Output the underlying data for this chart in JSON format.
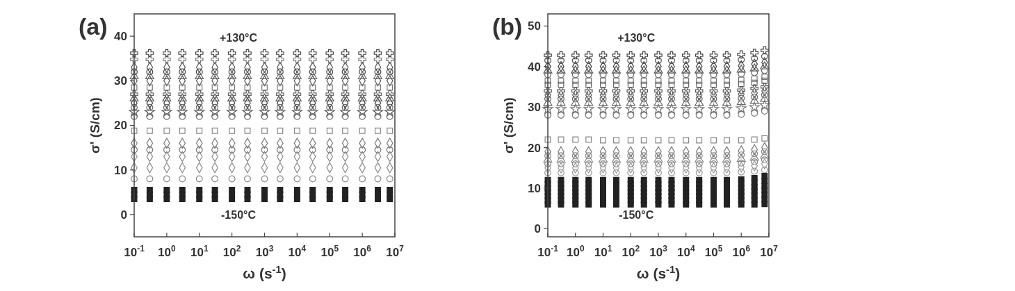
{
  "chart_data": [
    {
      "type": "scatter",
      "title": "(a)",
      "xlabel": "ω (s$^{-1}$)",
      "ylabel": "σ' (S/cm)",
      "log": "x",
      "xlim": [
        0.1,
        10000000
      ],
      "ylim": [
        -5,
        45
      ],
      "yticks": [
        0,
        10,
        20,
        30,
        40
      ],
      "xticks": [
        {
          "value": 0.1,
          "label": "10$^{-1}$"
        },
        {
          "value": 1,
          "label": "10$^{0}$"
        },
        {
          "value": 10,
          "label": "10$^{1}$"
        },
        {
          "value": 100,
          "label": "10$^{2}$"
        },
        {
          "value": 1000,
          "label": "10$^{3}$"
        },
        {
          "value": 10000,
          "label": "10$^{4}$"
        },
        {
          "value": 100000,
          "label": "10$^{5}$"
        },
        {
          "value": 1000000,
          "label": "10$^{6}$"
        },
        {
          "value": 10000000,
          "label": "10$^{7}$"
        }
      ],
      "annotations": [
        "+130°C",
        "-150°C"
      ],
      "grid": false,
      "x": [
        0.1,
        0.3,
        1,
        3,
        10,
        30,
        100,
        300,
        1000,
        3000,
        10000,
        30000,
        100000,
        300000,
        1000000,
        3000000,
        7000000
      ],
      "series": [
        {
          "color": "#444444",
          "marker": "cross",
          "values": [
            36.2,
            36.2,
            36.2,
            36.2,
            36.2,
            36.2,
            36.2,
            36.2,
            36.2,
            36.2,
            36.2,
            36.2,
            36.2,
            36.2,
            36.2,
            36.2,
            36.2
          ]
        },
        {
          "color": "#777777",
          "marker": "cross",
          "values": [
            34.8,
            34.8,
            34.8,
            34.8,
            34.8,
            34.8,
            34.8,
            34.8,
            34.8,
            34.8,
            34.8,
            34.8,
            34.8,
            34.8,
            34.8,
            34.8,
            34.8
          ]
        },
        {
          "color": "#555555",
          "marker": "diamond",
          "values": [
            33,
            33,
            33,
            33,
            33,
            33,
            33,
            33,
            33,
            33,
            33,
            33,
            33,
            33,
            33,
            33,
            33
          ]
        },
        {
          "color": "#444444",
          "marker": "circle",
          "values": [
            32,
            32,
            32,
            32,
            32,
            32,
            32,
            32,
            32,
            32,
            32,
            32,
            32,
            32,
            32,
            32,
            32
          ]
        },
        {
          "color": "#666666",
          "marker": "triangle",
          "values": [
            31,
            31,
            31,
            31,
            31,
            31,
            31,
            31,
            31,
            31,
            31,
            31,
            31,
            31,
            31,
            31,
            31
          ]
        },
        {
          "color": "#555555",
          "marker": "diamond",
          "values": [
            30,
            30,
            30,
            30,
            30,
            30,
            30,
            30,
            30,
            30,
            30,
            30,
            30,
            30,
            30,
            30,
            30
          ]
        },
        {
          "color": "#777777",
          "marker": "square",
          "values": [
            28.5,
            28.5,
            28.5,
            28.5,
            28.5,
            28.5,
            28.5,
            28.5,
            28.5,
            28.5,
            28.5,
            28.5,
            28.5,
            28.5,
            28.5,
            28.5,
            28.5
          ]
        },
        {
          "color": "#666666",
          "marker": "cross",
          "values": [
            27,
            27,
            27,
            27,
            27,
            27,
            27,
            27,
            27,
            27,
            27,
            27,
            27,
            27,
            27,
            27,
            27
          ]
        },
        {
          "color": "#555555",
          "marker": "triangle",
          "values": [
            26,
            26,
            26,
            26,
            26,
            26,
            26,
            26,
            26,
            26,
            26,
            26,
            26,
            26,
            26,
            26,
            26
          ]
        },
        {
          "color": "#444444",
          "marker": "diamond",
          "values": [
            25,
            25,
            25,
            25,
            25,
            25,
            25,
            25,
            25,
            25,
            25,
            25,
            25,
            25,
            25,
            25,
            25
          ]
        },
        {
          "color": "#666666",
          "marker": "circle",
          "values": [
            24,
            24,
            24,
            24,
            24,
            24,
            24,
            24,
            24,
            24,
            24,
            24,
            24,
            24,
            24,
            24,
            24
          ]
        },
        {
          "color": "#555555",
          "marker": "star",
          "values": [
            23,
            23,
            23,
            23,
            23,
            23,
            23,
            23,
            23,
            23,
            23,
            23,
            23,
            23,
            23,
            23,
            23
          ]
        },
        {
          "color": "#777777",
          "marker": "circle",
          "values": [
            22,
            22,
            22,
            22,
            22,
            22,
            22,
            22,
            22,
            22,
            22,
            22,
            22,
            22,
            22,
            22,
            22
          ]
        },
        {
          "color": "#888888",
          "marker": "square",
          "values": [
            18.8,
            18.8,
            18.8,
            18.8,
            18.8,
            18.8,
            18.8,
            18.8,
            18.8,
            18.8,
            18.8,
            18.8,
            18.8,
            18.8,
            18.8,
            18.8,
            18.8
          ]
        },
        {
          "color": "#777777",
          "marker": "diamond",
          "values": [
            16,
            16,
            16,
            16,
            16,
            16,
            16,
            16,
            16,
            16,
            16,
            16,
            16,
            16,
            16,
            16,
            16
          ]
        },
        {
          "color": "#777777",
          "marker": "circle",
          "values": [
            14.5,
            14.5,
            14.5,
            14.5,
            14.5,
            14.5,
            14.5,
            14.5,
            14.5,
            14.5,
            14.5,
            14.5,
            14.5,
            14.5,
            14.5,
            14.5,
            14.5
          ]
        },
        {
          "color": "#888888",
          "marker": "diamond",
          "values": [
            13,
            13,
            13,
            13,
            13,
            13,
            13,
            13,
            13,
            13,
            13,
            13,
            13,
            13,
            13,
            13,
            13
          ]
        },
        {
          "color": "#888888",
          "marker": "diamond",
          "values": [
            10.5,
            10.5,
            10.5,
            10.5,
            10.5,
            10.5,
            10.5,
            10.5,
            10.5,
            10.5,
            10.5,
            10.5,
            10.5,
            10.5,
            10.5,
            10.5,
            10.5
          ]
        },
        {
          "color": "#888888",
          "marker": "circle",
          "values": [
            8,
            8,
            8,
            8,
            8,
            8,
            8,
            8,
            8,
            8,
            8,
            8,
            8,
            8,
            8,
            8,
            8
          ]
        },
        {
          "color": "#222222",
          "marker": "square",
          "values": [
            5.5,
            5.5,
            5.5,
            5.5,
            5.5,
            5.5,
            5.5,
            5.5,
            5.5,
            5.5,
            5.5,
            5.5,
            5.5,
            5.5,
            5.5,
            5.5,
            5.5
          ]
        },
        {
          "color": "#222222",
          "marker": "square",
          "values": [
            4.5,
            4.5,
            4.5,
            4.5,
            4.5,
            4.5,
            4.5,
            4.5,
            4.5,
            4.5,
            4.5,
            4.5,
            4.5,
            4.5,
            4.5,
            4.5,
            4.5
          ]
        },
        {
          "color": "#222222",
          "marker": "square",
          "values": [
            3.5,
            3.5,
            3.5,
            3.5,
            3.5,
            3.5,
            3.5,
            3.5,
            3.5,
            3.5,
            3.5,
            3.5,
            3.5,
            3.5,
            3.5,
            3.5,
            3.5
          ]
        }
      ]
    },
    {
      "type": "scatter",
      "title": "(b)",
      "xlabel": "ω (s$^{-1}$)",
      "ylabel": "σ' (S/cm)",
      "log": "x",
      "xlim": [
        0.1,
        10000000
      ],
      "ylim": [
        -2,
        53
      ],
      "yticks": [
        0,
        10,
        20,
        30,
        40,
        50
      ],
      "xticks": [
        {
          "value": 0.1,
          "label": "10$^{-1}$"
        },
        {
          "value": 1,
          "label": "10$^{0}$"
        },
        {
          "value": 10,
          "label": "10$^{1}$"
        },
        {
          "value": 100,
          "label": "10$^{2}$"
        },
        {
          "value": 1000,
          "label": "10$^{3}$"
        },
        {
          "value": 10000,
          "label": "10$^{4}$"
        },
        {
          "value": 100000,
          "label": "10$^{5}$"
        },
        {
          "value": 1000000,
          "label": "10$^{6}$"
        },
        {
          "value": 10000000,
          "label": "10$^{7}$"
        }
      ],
      "annotations": [
        "+130°C",
        "-150°C"
      ],
      "grid": false,
      "x": [
        0.1,
        0.3,
        1,
        3,
        10,
        30,
        100,
        300,
        1000,
        3000,
        10000,
        30000,
        100000,
        300000,
        1000000,
        3000000,
        7000000
      ],
      "series": [
        {
          "color": "#444444",
          "marker": "cross",
          "values": [
            42.8,
            42.8,
            42.8,
            42.8,
            42.8,
            42.8,
            42.8,
            42.8,
            42.8,
            42.8,
            42.8,
            42.8,
            42.8,
            42.8,
            43,
            43.4,
            44
          ]
        },
        {
          "color": "#555555",
          "marker": "circle",
          "values": [
            41.5,
            41.5,
            41.5,
            41.5,
            41.5,
            41.5,
            41.5,
            41.5,
            41.5,
            41.5,
            41.5,
            41.5,
            41.5,
            41.5,
            41.7,
            42,
            42.5
          ]
        },
        {
          "color": "#444444",
          "marker": "diamond",
          "values": [
            40,
            40,
            40,
            40,
            40,
            40,
            40,
            40,
            40,
            40,
            40,
            40,
            40,
            40,
            40.2,
            40.6,
            41
          ]
        },
        {
          "color": "#555555",
          "marker": "triangle",
          "values": [
            39,
            39,
            39,
            39,
            39,
            39,
            39,
            39,
            39,
            39,
            39,
            39,
            39,
            39,
            39.2,
            39.5,
            40
          ]
        },
        {
          "color": "#666666",
          "marker": "circle",
          "values": [
            38,
            38,
            38,
            38,
            38,
            38,
            38,
            38,
            38,
            38,
            38,
            38,
            38,
            38,
            38.2,
            38.5,
            39
          ]
        },
        {
          "color": "#777777",
          "marker": "square",
          "values": [
            36.5,
            36.5,
            36.5,
            36.5,
            36.5,
            36.5,
            36.5,
            36.5,
            36.5,
            36.5,
            36.5,
            36.5,
            36.5,
            36.5,
            36.7,
            37,
            37.5
          ]
        },
        {
          "color": "#666666",
          "marker": "square",
          "values": [
            35.5,
            35.5,
            35.5,
            35.5,
            35.5,
            35.5,
            35.5,
            35.5,
            35.5,
            35.5,
            35.5,
            35.5,
            35.5,
            35.5,
            35.7,
            36,
            36.5
          ]
        },
        {
          "color": "#555555",
          "marker": "cross",
          "values": [
            34,
            34,
            34,
            34,
            34,
            34,
            34,
            34,
            34,
            34,
            34,
            34,
            34,
            34,
            34.2,
            34.6,
            35
          ]
        },
        {
          "color": "#666666",
          "marker": "diamond",
          "values": [
            33,
            33,
            33,
            33,
            33,
            33,
            33,
            33,
            33,
            33,
            33,
            33,
            33,
            33,
            33.2,
            33.5,
            34
          ]
        },
        {
          "color": "#666666",
          "marker": "circle",
          "values": [
            32,
            32,
            32,
            32,
            32,
            32,
            32,
            32,
            32,
            32,
            32,
            32,
            32,
            32,
            32.2,
            32.5,
            33
          ]
        },
        {
          "color": "#666666",
          "marker": "triangle",
          "values": [
            31,
            31,
            31,
            31,
            31,
            31,
            31,
            31,
            31,
            31,
            31,
            31,
            31,
            31,
            31.2,
            31.5,
            32
          ]
        },
        {
          "color": "#777777",
          "marker": "star",
          "values": [
            29.5,
            29.5,
            29.5,
            29.5,
            29.5,
            29.5,
            29.5,
            29.5,
            29.5,
            29.5,
            29.5,
            29.5,
            29.5,
            29.5,
            29.7,
            30,
            30.5
          ]
        },
        {
          "color": "#777777",
          "marker": "circle",
          "values": [
            28,
            28,
            28,
            28,
            28,
            28,
            28,
            28,
            28,
            28,
            28,
            28,
            28,
            28,
            28.2,
            28.5,
            29
          ]
        },
        {
          "color": "#888888",
          "marker": "square",
          "values": [
            22,
            22,
            22,
            22,
            21.8,
            21.8,
            21.8,
            21.8,
            21.8,
            21.8,
            21.8,
            21.8,
            21.8,
            21.8,
            21.8,
            22,
            22.3
          ]
        },
        {
          "color": "#777777",
          "marker": "diamond",
          "values": [
            19,
            19,
            19,
            19,
            19,
            19,
            19,
            19,
            19,
            19,
            19,
            19,
            19,
            19,
            19.2,
            19.5,
            20
          ]
        },
        {
          "color": "#888888",
          "marker": "circle",
          "values": [
            18,
            18,
            18,
            18,
            18,
            18,
            18,
            18,
            18,
            18,
            18,
            18,
            18,
            18,
            18.2,
            18.5,
            19
          ]
        },
        {
          "color": "#888888",
          "marker": "triangle",
          "values": [
            17,
            17,
            17,
            17,
            17,
            17,
            17,
            17,
            17,
            17,
            17,
            17,
            17,
            17,
            17.2,
            17.5,
            18
          ]
        },
        {
          "color": "#888888",
          "marker": "circle",
          "values": [
            16,
            16,
            16,
            16,
            16,
            16,
            16,
            16,
            16,
            16,
            16,
            16,
            16,
            16,
            16.2,
            16.5,
            17
          ]
        },
        {
          "color": "#999999",
          "marker": "diamond",
          "values": [
            15,
            15,
            15,
            15,
            15,
            15,
            15,
            15,
            15,
            15,
            15,
            15,
            15,
            15,
            15.2,
            15.5,
            16
          ]
        },
        {
          "color": "#999999",
          "marker": "circle",
          "values": [
            13.8,
            13.8,
            13.8,
            13.8,
            13.8,
            13.8,
            13.8,
            13.8,
            13.8,
            13.8,
            13.8,
            13.8,
            13.8,
            13.8,
            14,
            14.2,
            14.5
          ]
        },
        {
          "color": "#222222",
          "marker": "square",
          "values": [
            12,
            12,
            12,
            12,
            12,
            12,
            12,
            12,
            12,
            12,
            12,
            12,
            12,
            12,
            12.2,
            12.5,
            13
          ]
        },
        {
          "color": "#222222",
          "marker": "square",
          "values": [
            11,
            11,
            11,
            11,
            11,
            11,
            11,
            11,
            11,
            11,
            11,
            11,
            11,
            11,
            11.2,
            11.4,
            11.8
          ]
        },
        {
          "color": "#222222",
          "marker": "square",
          "values": [
            10,
            10,
            10,
            10,
            10,
            10,
            10,
            10,
            10,
            10,
            10,
            10,
            10,
            10,
            10.1,
            10.3,
            10.6
          ]
        },
        {
          "color": "#222222",
          "marker": "square",
          "values": [
            9,
            9,
            9,
            9,
            9,
            9,
            9,
            9,
            9,
            9,
            9,
            9,
            9,
            9,
            9.1,
            9.3,
            9.5
          ]
        },
        {
          "color": "#222222",
          "marker": "square",
          "values": [
            8,
            8,
            8,
            8,
            8,
            8,
            8,
            8,
            8,
            8,
            8,
            8,
            8,
            8,
            8.1,
            8.2,
            8.4
          ]
        },
        {
          "color": "#222222",
          "marker": "square",
          "values": [
            7,
            7,
            7,
            7,
            7,
            7,
            7,
            7,
            7,
            7,
            7,
            7,
            7,
            7,
            7,
            7.1,
            7.2
          ]
        },
        {
          "color": "#222222",
          "marker": "square",
          "values": [
            6,
            6,
            6,
            6,
            6,
            6,
            6,
            6,
            6,
            6,
            6,
            6,
            6,
            6,
            6,
            6,
            6.1
          ]
        }
      ]
    }
  ]
}
